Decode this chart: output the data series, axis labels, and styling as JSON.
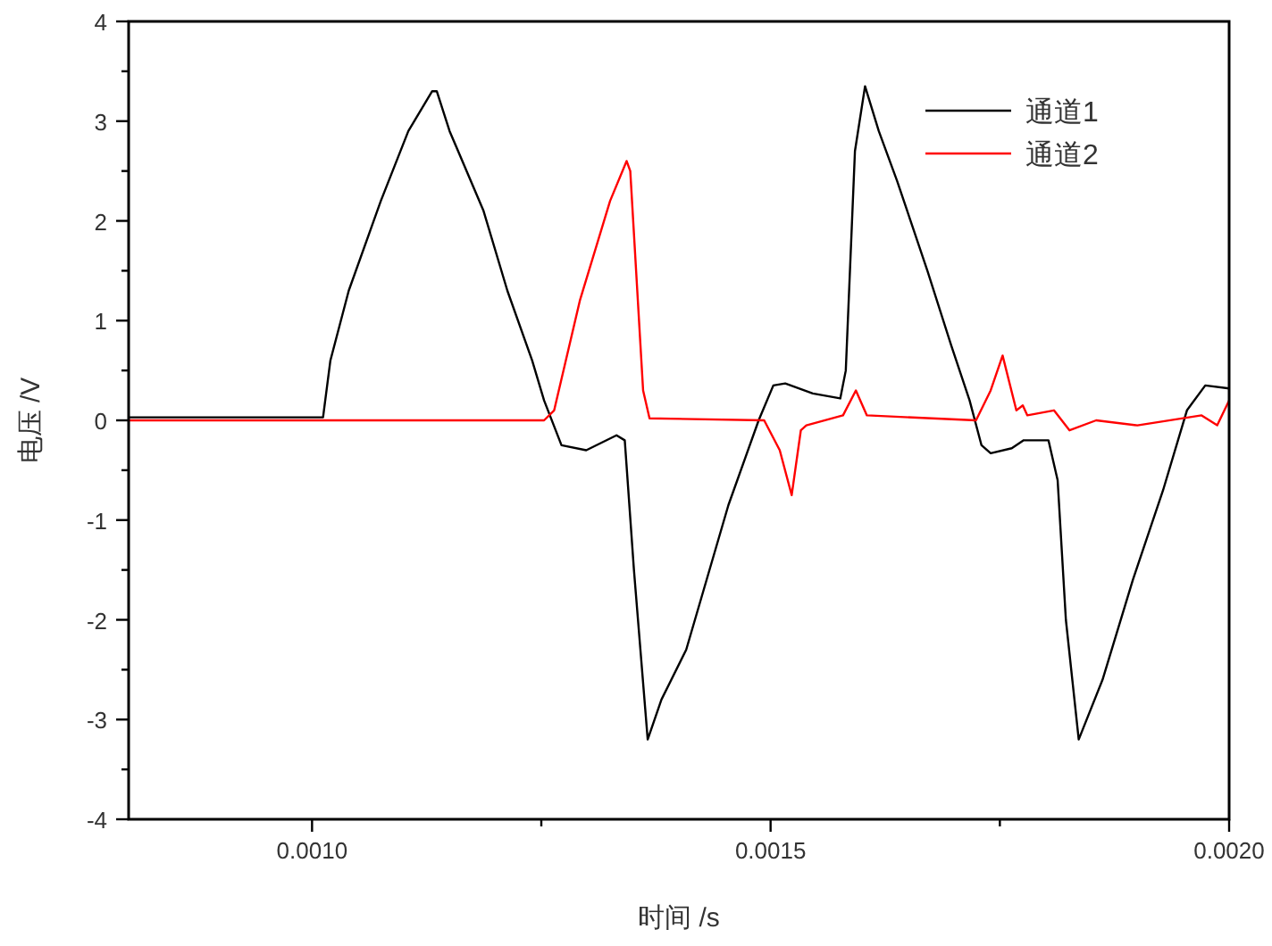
{
  "chart_data": {
    "type": "line",
    "xlabel": "时间 /s",
    "ylabel": "电压 /V",
    "xlim": [
      0.0008,
      0.002
    ],
    "ylim": [
      -4,
      4
    ],
    "xticks": [
      {
        "value": 0.001,
        "label": "0.0010"
      },
      {
        "value": 0.00125,
        "label": null
      },
      {
        "value": 0.0015,
        "label": "0.0015"
      },
      {
        "value": 0.00175,
        "label": null
      },
      {
        "value": 0.002,
        "label": "0.0020"
      }
    ],
    "yticks": [
      -4,
      {
        "value": -3.5,
        "label": null
      },
      -3,
      {
        "value": -2.5,
        "label": null
      },
      -2,
      {
        "value": -1.5,
        "label": null
      },
      -1,
      {
        "value": -0.5,
        "label": null
      },
      0,
      {
        "value": 0.5,
        "label": null
      },
      1,
      {
        "value": 1.5,
        "label": null
      },
      2,
      {
        "value": 2.5,
        "label": null
      },
      3,
      {
        "value": 3.5,
        "label": null
      },
      4
    ],
    "legend": "top right",
    "series": [
      {
        "name": "通道1",
        "color": "#000000",
        "x": [
          0.0008,
          0.00095,
          0.001012,
          0.00102,
          0.00104,
          0.001075,
          0.001105,
          0.001131,
          0.001136,
          0.00115,
          0.001187,
          0.001213,
          0.00124,
          0.001253,
          0.001272,
          0.001299,
          0.001332,
          0.001341,
          0.001351,
          0.001366,
          0.001381,
          0.001408,
          0.001454,
          0.001487,
          0.001503,
          0.001516,
          0.001546,
          0.001576,
          0.001582,
          0.001592,
          0.001603,
          0.001618,
          0.001638,
          0.001671,
          0.001697,
          0.001717,
          0.00173,
          0.00174,
          0.001763,
          0.001776,
          0.001803,
          0.001813,
          0.001822,
          0.001836,
          0.001862,
          0.001895,
          0.001928,
          0.001954,
          0.001974,
          0.002
        ],
        "values": [
          0.03,
          0.03,
          0.03,
          0.6,
          1.3,
          2.2,
          2.9,
          3.3,
          3.3,
          2.9,
          2.1,
          1.3,
          0.6,
          0.2,
          -0.25,
          -0.3,
          -0.15,
          -0.2,
          -1.5,
          -3.2,
          -2.8,
          -2.3,
          -0.85,
          0,
          0.35,
          0.37,
          0.27,
          0.22,
          0.5,
          2.7,
          3.35,
          2.9,
          2.4,
          1.5,
          0.75,
          0.2,
          -0.25,
          -0.33,
          -0.28,
          -0.2,
          -0.2,
          -0.6,
          -2,
          -3.2,
          -2.6,
          -1.6,
          -0.7,
          0.1,
          0.35,
          0.32
        ]
      },
      {
        "name": "通道2",
        "color": "#ff0000",
        "x": [
          0.0008,
          0.001,
          0.001253,
          0.001264,
          0.001292,
          0.001325,
          0.001343,
          0.001347,
          0.001361,
          0.001368,
          0.001493,
          0.00151,
          0.001523,
          0.001533,
          0.001539,
          0.001579,
          0.001593,
          0.001605,
          0.001724,
          0.00174,
          0.001753,
          0.001768,
          0.001775,
          0.00178,
          0.001809,
          0.001826,
          0.001855,
          0.0019,
          0.00197,
          0.001987,
          0.002
        ],
        "values": [
          0,
          0,
          0,
          0.1,
          1.2,
          2.2,
          2.6,
          2.5,
          0.3,
          0.02,
          0,
          -0.3,
          -0.75,
          -0.1,
          -0.05,
          0.05,
          0.3,
          0.05,
          0,
          0.3,
          0.65,
          0.1,
          0.15,
          0.05,
          0.1,
          -0.1,
          0,
          -0.05,
          0.05,
          -0.05,
          0.2
        ]
      }
    ]
  }
}
